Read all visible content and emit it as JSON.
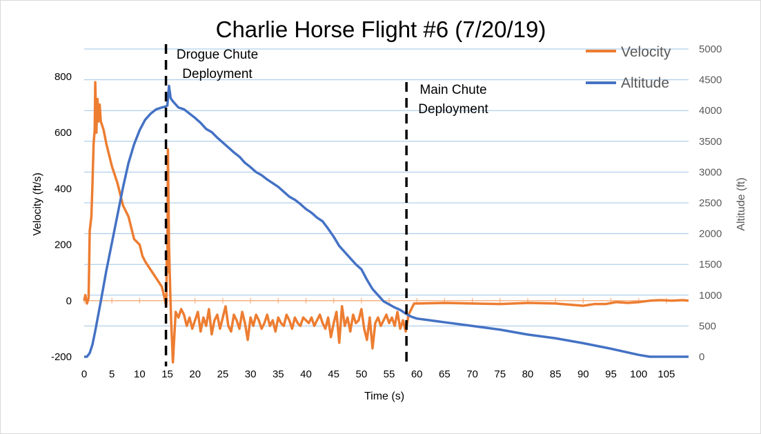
{
  "chart_data": {
    "type": "line",
    "title": "Charlie Horse Flight #6 (7/20/19)",
    "xlabel": "Time (s)",
    "ylabel": "Velocity (ft/s)",
    "y2label": "Altitude (ft)",
    "xlim": [
      0,
      109
    ],
    "ylim": [
      -200,
      800
    ],
    "y2lim": [
      0,
      5000
    ],
    "x_ticks": [
      0,
      5,
      10,
      15,
      20,
      25,
      30,
      35,
      40,
      45,
      50,
      55,
      60,
      65,
      70,
      75,
      80,
      85,
      90,
      95,
      100,
      105
    ],
    "y_ticks": [
      -200,
      0,
      200,
      400,
      600,
      800
    ],
    "y2_ticks": [
      0,
      500,
      1000,
      1500,
      2000,
      2500,
      3000,
      3500,
      4000,
      4500,
      5000
    ],
    "grid": true,
    "legend_position": "top-right",
    "series": [
      {
        "name": "Velocity",
        "axis": "left",
        "color": "#ed7d31",
        "points": [
          [
            0,
            0
          ],
          [
            0.2,
            20
          ],
          [
            0.5,
            -10
          ],
          [
            0.8,
            10
          ],
          [
            1.0,
            250
          ],
          [
            1.3,
            300
          ],
          [
            1.5,
            420
          ],
          [
            1.7,
            560
          ],
          [
            1.9,
            610
          ],
          [
            2.0,
            780
          ],
          [
            2.2,
            600
          ],
          [
            2.4,
            720
          ],
          [
            2.6,
            640
          ],
          [
            2.8,
            700
          ],
          [
            3.0,
            640
          ],
          [
            3.5,
            610
          ],
          [
            4.0,
            560
          ],
          [
            5.0,
            480
          ],
          [
            6.0,
            420
          ],
          [
            7.0,
            340
          ],
          [
            8.0,
            300
          ],
          [
            9.0,
            220
          ],
          [
            10.0,
            200
          ],
          [
            10.5,
            160
          ],
          [
            11.0,
            140
          ],
          [
            12.0,
            110
          ],
          [
            13.0,
            80
          ],
          [
            14.0,
            50
          ],
          [
            14.5,
            10
          ],
          [
            14.8,
            -20
          ],
          [
            14.9,
            150
          ],
          [
            15.0,
            100
          ],
          [
            15.1,
            540
          ],
          [
            15.3,
            200
          ],
          [
            15.5,
            50
          ],
          [
            15.7,
            -80
          ],
          [
            15.9,
            -170
          ],
          [
            16.0,
            -220
          ],
          [
            16.5,
            -40
          ],
          [
            17,
            -60
          ],
          [
            17.5,
            -30
          ],
          [
            18,
            -50
          ],
          [
            18.5,
            -90
          ],
          [
            19,
            -60
          ],
          [
            19.5,
            -100
          ],
          [
            20,
            -70
          ],
          [
            20.5,
            -40
          ],
          [
            21,
            -110
          ],
          [
            21.5,
            -60
          ],
          [
            22,
            -90
          ],
          [
            22.5,
            -30
          ],
          [
            23,
            -120
          ],
          [
            23.5,
            -70
          ],
          [
            24,
            -50
          ],
          [
            24.5,
            -100
          ],
          [
            25,
            -60
          ],
          [
            25.5,
            -20
          ],
          [
            26,
            -90
          ],
          [
            26.5,
            -110
          ],
          [
            27,
            -50
          ],
          [
            27.5,
            -70
          ],
          [
            28,
            -100
          ],
          [
            28.5,
            -40
          ],
          [
            29,
            -80
          ],
          [
            29.5,
            -140
          ],
          [
            30,
            -60
          ],
          [
            30.5,
            -90
          ],
          [
            31,
            -50
          ],
          [
            31.5,
            -70
          ],
          [
            32,
            -100
          ],
          [
            32.5,
            -80
          ],
          [
            33,
            -50
          ],
          [
            33.5,
            -90
          ],
          [
            34,
            -70
          ],
          [
            34.5,
            -110
          ],
          [
            35,
            -60
          ],
          [
            35.5,
            -80
          ],
          [
            36,
            -90
          ],
          [
            36.5,
            -50
          ],
          [
            37,
            -70
          ],
          [
            37.5,
            -100
          ],
          [
            38,
            -60
          ],
          [
            38.5,
            -80
          ],
          [
            39,
            -90
          ],
          [
            39.5,
            -60
          ],
          [
            40,
            -70
          ],
          [
            40.5,
            -80
          ],
          [
            41,
            -60
          ],
          [
            41.5,
            -90
          ],
          [
            42,
            -70
          ],
          [
            42.5,
            -50
          ],
          [
            43,
            -80
          ],
          [
            43.5,
            -100
          ],
          [
            44,
            -60
          ],
          [
            44.5,
            -130
          ],
          [
            45,
            -80
          ],
          [
            45.5,
            -40
          ],
          [
            46,
            -150
          ],
          [
            46.5,
            -20
          ],
          [
            47,
            -90
          ],
          [
            47.5,
            -60
          ],
          [
            48,
            -110
          ],
          [
            48.5,
            -50
          ],
          [
            49,
            -80
          ],
          [
            49.5,
            -70
          ],
          [
            50,
            -30
          ],
          [
            50.5,
            -100
          ],
          [
            51,
            -140
          ],
          [
            51.5,
            -60
          ],
          [
            52,
            -170
          ],
          [
            52.5,
            -80
          ],
          [
            53,
            -60
          ],
          [
            53.5,
            -90
          ],
          [
            54,
            -70
          ],
          [
            54.5,
            -50
          ],
          [
            55,
            -80
          ],
          [
            55.5,
            -60
          ],
          [
            56,
            -90
          ],
          [
            56.5,
            -40
          ],
          [
            57,
            -100
          ],
          [
            57.5,
            -70
          ],
          [
            58,
            -110
          ],
          [
            58.5,
            -50
          ],
          [
            59,
            -30
          ],
          [
            59.5,
            -10
          ],
          [
            60,
            -10
          ],
          [
            65,
            -8
          ],
          [
            70,
            -10
          ],
          [
            75,
            -12
          ],
          [
            80,
            -8
          ],
          [
            85,
            -10
          ],
          [
            90,
            -18
          ],
          [
            92,
            -12
          ],
          [
            94,
            -12
          ],
          [
            96,
            -5
          ],
          [
            98,
            -8
          ],
          [
            100,
            -5
          ],
          [
            102,
            0
          ],
          [
            104,
            2
          ],
          [
            106,
            0
          ],
          [
            108,
            2
          ],
          [
            109,
            0
          ]
        ]
      },
      {
        "name": "Altitude",
        "axis": "right",
        "color": "#4472c4",
        "points": [
          [
            0,
            0
          ],
          [
            0.5,
            0
          ],
          [
            1,
            60
          ],
          [
            1.5,
            200
          ],
          [
            2,
            420
          ],
          [
            3,
            900
          ],
          [
            4,
            1400
          ],
          [
            5,
            1850
          ],
          [
            6,
            2300
          ],
          [
            7,
            2750
          ],
          [
            8,
            3150
          ],
          [
            9,
            3450
          ],
          [
            10,
            3680
          ],
          [
            11,
            3850
          ],
          [
            12,
            3950
          ],
          [
            13,
            4020
          ],
          [
            14,
            4050
          ],
          [
            14.5,
            4060
          ],
          [
            15,
            4080
          ],
          [
            15.3,
            4400
          ],
          [
            15.6,
            4200
          ],
          [
            16,
            4150
          ],
          [
            17,
            4050
          ],
          [
            18,
            4020
          ],
          [
            19,
            3950
          ],
          [
            20,
            3880
          ],
          [
            21,
            3800
          ],
          [
            22,
            3700
          ],
          [
            23,
            3650
          ],
          [
            24,
            3560
          ],
          [
            25,
            3480
          ],
          [
            26,
            3400
          ],
          [
            27,
            3320
          ],
          [
            28,
            3250
          ],
          [
            29,
            3150
          ],
          [
            30,
            3080
          ],
          [
            31,
            3000
          ],
          [
            32,
            2950
          ],
          [
            33,
            2880
          ],
          [
            34,
            2820
          ],
          [
            35,
            2760
          ],
          [
            36,
            2680
          ],
          [
            37,
            2600
          ],
          [
            38,
            2550
          ],
          [
            39,
            2480
          ],
          [
            40,
            2400
          ],
          [
            41,
            2340
          ],
          [
            42,
            2260
          ],
          [
            43,
            2200
          ],
          [
            44,
            2080
          ],
          [
            45,
            1950
          ],
          [
            46,
            1800
          ],
          [
            47,
            1700
          ],
          [
            48,
            1600
          ],
          [
            49,
            1500
          ],
          [
            50,
            1420
          ],
          [
            51,
            1250
          ],
          [
            52,
            1100
          ],
          [
            53,
            1000
          ],
          [
            54,
            900
          ],
          [
            55,
            850
          ],
          [
            56,
            800
          ],
          [
            57,
            760
          ],
          [
            58,
            700
          ],
          [
            59,
            650
          ],
          [
            60,
            620
          ],
          [
            65,
            560
          ],
          [
            70,
            500
          ],
          [
            75,
            440
          ],
          [
            80,
            360
          ],
          [
            85,
            300
          ],
          [
            90,
            220
          ],
          [
            95,
            130
          ],
          [
            100,
            30
          ],
          [
            102,
            0
          ],
          [
            105,
            0
          ],
          [
            109,
            0
          ]
        ]
      }
    ],
    "annotations": [
      {
        "x": 15,
        "lines": [
          "Drogue Chute",
          "Deployment"
        ]
      },
      {
        "x": 58,
        "lines": [
          "Main Chute",
          "Deployment"
        ]
      }
    ]
  }
}
